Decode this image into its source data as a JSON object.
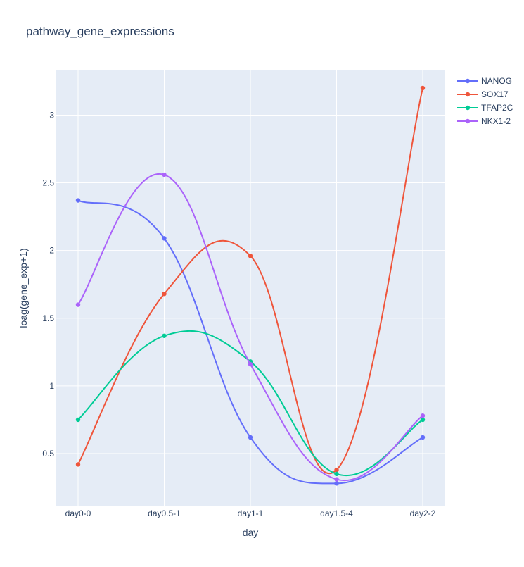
{
  "chart_data": {
    "type": "line",
    "title": "pathway_gene_expressions",
    "xlabel": "day",
    "ylabel": "loag(gene_exp+1)",
    "categories": [
      "day0-0",
      "day0.5-1",
      "day1-1",
      "day1.5-4",
      "day2-2"
    ],
    "ylim": [
      0.11,
      3.33
    ],
    "yticks": [
      0.5,
      1,
      1.5,
      2,
      2.5,
      3
    ],
    "ytick_labels": [
      "0.5",
      "1",
      "1.5",
      "2",
      "2.5",
      "3"
    ],
    "grid": true,
    "legend_position": "top-right",
    "line_shape": "spline",
    "series": [
      {
        "name": "NANOG",
        "color": "#636efa",
        "values": [
          2.37,
          2.09,
          0.62,
          0.28,
          0.62
        ]
      },
      {
        "name": "SOX17",
        "color": "#ef553b",
        "values": [
          0.42,
          1.68,
          1.96,
          0.38,
          3.2
        ]
      },
      {
        "name": "TFAP2C",
        "color": "#00cc96",
        "values": [
          0.75,
          1.37,
          1.18,
          0.35,
          0.75
        ]
      },
      {
        "name": "NKX1-2",
        "color": "#ab63fa",
        "values": [
          1.6,
          2.56,
          1.16,
          0.31,
          0.78
        ]
      }
    ]
  },
  "colors": {
    "plot_background": "#e5ecf6",
    "grid": "#ffffff",
    "text": "#2a3f5f"
  }
}
